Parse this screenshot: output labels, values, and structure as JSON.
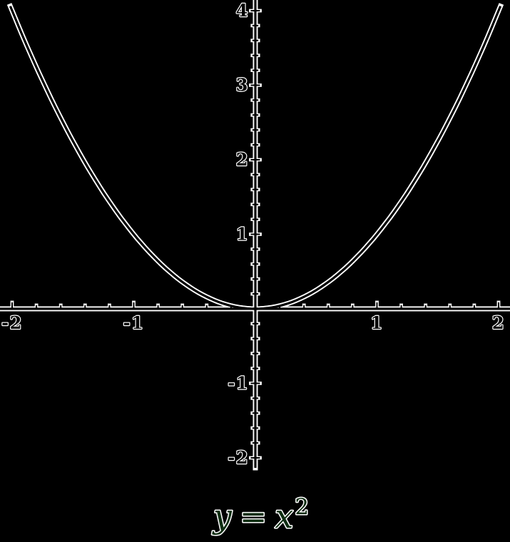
{
  "figure": {
    "background": "#000000",
    "outline_color": "#ffffff",
    "ink_color": "#000000",
    "label_color": "#000000",
    "title_color": "#0f2e12"
  },
  "title": {
    "full": "y = x²",
    "lhs": "y",
    "equals": "=",
    "rhs": "x",
    "exponent": "2"
  },
  "chart_data": {
    "type": "line",
    "title": "y = x²",
    "equation": "y = x^2",
    "xlabel": "",
    "ylabel": "",
    "x_range": [
      -2,
      2
    ],
    "y_range": [
      -2,
      4
    ],
    "minor_tick_step": 0.2,
    "major_tick_step": 1,
    "grid": false,
    "legend": false,
    "axes_style": "black stroke with white outline on black background, cross at origin",
    "series": [
      {
        "name": "y = x²",
        "x": [
          -2,
          -1.5,
          -1,
          -0.5,
          0,
          0.5,
          1,
          1.5,
          2
        ],
        "y": [
          4,
          2.25,
          1,
          0.25,
          0,
          0.25,
          1,
          2.25,
          4
        ]
      }
    ],
    "x_tick_labels": [
      {
        "value": -2,
        "label": "-2"
      },
      {
        "value": -1,
        "label": "-1"
      },
      {
        "value": 1,
        "label": "1"
      },
      {
        "value": 2,
        "label": "2"
      }
    ],
    "y_tick_labels": [
      {
        "value": 4,
        "label": "4"
      },
      {
        "value": 3,
        "label": "3"
      },
      {
        "value": 2,
        "label": "2"
      },
      {
        "value": 1,
        "label": "1"
      },
      {
        "value": -1,
        "label": "-1"
      },
      {
        "value": -2,
        "label": "-2"
      }
    ]
  }
}
